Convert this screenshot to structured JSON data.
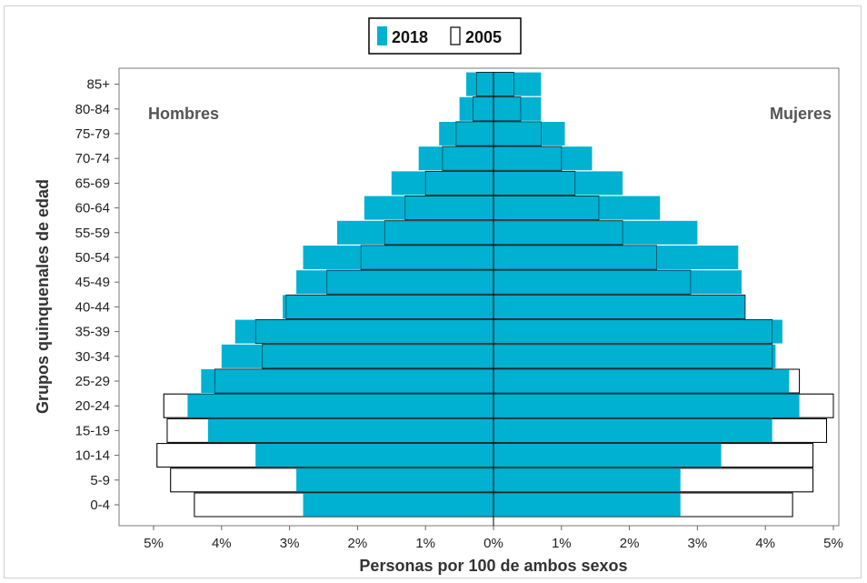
{
  "chart_data": {
    "type": "bar",
    "subtype": "population-pyramid",
    "ylabel": "Grupos quinquenales de edad",
    "xlabel": "Personas por 100 de ambos sexos",
    "left_label": "Hombres",
    "right_label": "Mujeres",
    "categories": [
      "0-4",
      "5-9",
      "10-14",
      "15-19",
      "20-24",
      "25-29",
      "30-34",
      "35-39",
      "40-44",
      "45-49",
      "50-54",
      "55-59",
      "60-64",
      "65-69",
      "70-74",
      "75-79",
      "80-84",
      "85+"
    ],
    "x_ticks": [
      "5%",
      "4%",
      "3%",
      "2%",
      "1%",
      "0%",
      "1%",
      "2%",
      "3%",
      "4%",
      "5%"
    ],
    "xlim": [
      -5,
      5
    ],
    "legend": {
      "position": "top-center"
    },
    "series": [
      {
        "name": "2018",
        "color": "#00b1d1",
        "style": "filled",
        "male": [
          2.8,
          2.9,
          3.5,
          4.2,
          4.5,
          4.3,
          4.0,
          3.8,
          3.1,
          2.9,
          2.8,
          2.3,
          1.9,
          1.5,
          1.1,
          0.8,
          0.5,
          0.4
        ],
        "female": [
          2.75,
          2.75,
          3.35,
          4.1,
          4.5,
          4.35,
          4.15,
          4.25,
          3.7,
          3.65,
          3.6,
          3.0,
          2.45,
          1.9,
          1.45,
          1.05,
          0.7,
          0.7
        ]
      },
      {
        "name": "2005",
        "color": "#ffffff",
        "style": "outline",
        "male": [
          4.4,
          4.75,
          4.95,
          4.8,
          4.85,
          4.1,
          3.4,
          3.5,
          3.05,
          2.45,
          1.95,
          1.6,
          1.3,
          1.0,
          0.75,
          0.55,
          0.3,
          0.25
        ],
        "female": [
          4.4,
          4.7,
          4.7,
          4.9,
          5.0,
          4.5,
          4.1,
          4.1,
          3.7,
          2.9,
          2.4,
          1.9,
          1.55,
          1.2,
          1.0,
          0.7,
          0.4,
          0.3
        ]
      }
    ]
  }
}
